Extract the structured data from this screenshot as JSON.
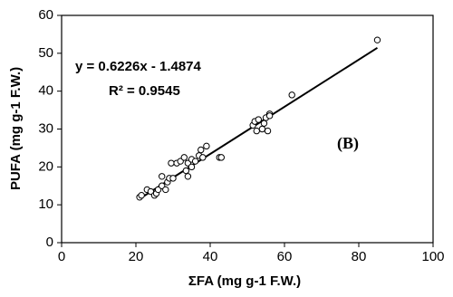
{
  "chart_data": {
    "type": "scatter",
    "xlabel": "ΣFA (mg g-1 F.W.)",
    "ylabel": "PUFA (mg g-1 F.W.)",
    "annotations": [
      "y = 0.6226x - 1.4874",
      "R² = 0.9545",
      "(B)"
    ],
    "x": [
      21,
      21.5,
      23,
      24,
      25,
      25.5,
      26,
      27,
      27,
      28,
      28.5,
      29,
      29.5,
      30,
      31,
      32,
      33,
      33.5,
      34,
      34,
      35,
      35,
      36,
      37,
      37.5,
      38,
      39,
      42.5,
      43,
      51.5,
      52,
      52.5,
      53,
      54,
      54.5,
      55,
      55.5,
      56,
      56,
      62,
      85
    ],
    "series": [
      {
        "name": "PUFA",
        "color": "#000000",
        "values": [
          12,
          12.5,
          14,
          13.5,
          12.5,
          13,
          14,
          17.5,
          15,
          14,
          16,
          17,
          21,
          17,
          21,
          21.5,
          22.5,
          19,
          17.5,
          21,
          22,
          20,
          21.5,
          23,
          24.5,
          22.5,
          25.5,
          22.5,
          22.5,
          31,
          32,
          29.5,
          32.5,
          30,
          31.5,
          33,
          29.5,
          34,
          33.5,
          39,
          53.5
        ]
      }
    ],
    "trendline": {
      "slope": 0.6226,
      "intercept": -1.4874
    },
    "xlim": [
      0,
      100
    ],
    "xticks": [
      0,
      20,
      40,
      60,
      80,
      100
    ],
    "ylim": [
      0,
      60
    ],
    "yticks": [
      0,
      10,
      20,
      30,
      40,
      50,
      60
    ],
    "grid": false
  }
}
